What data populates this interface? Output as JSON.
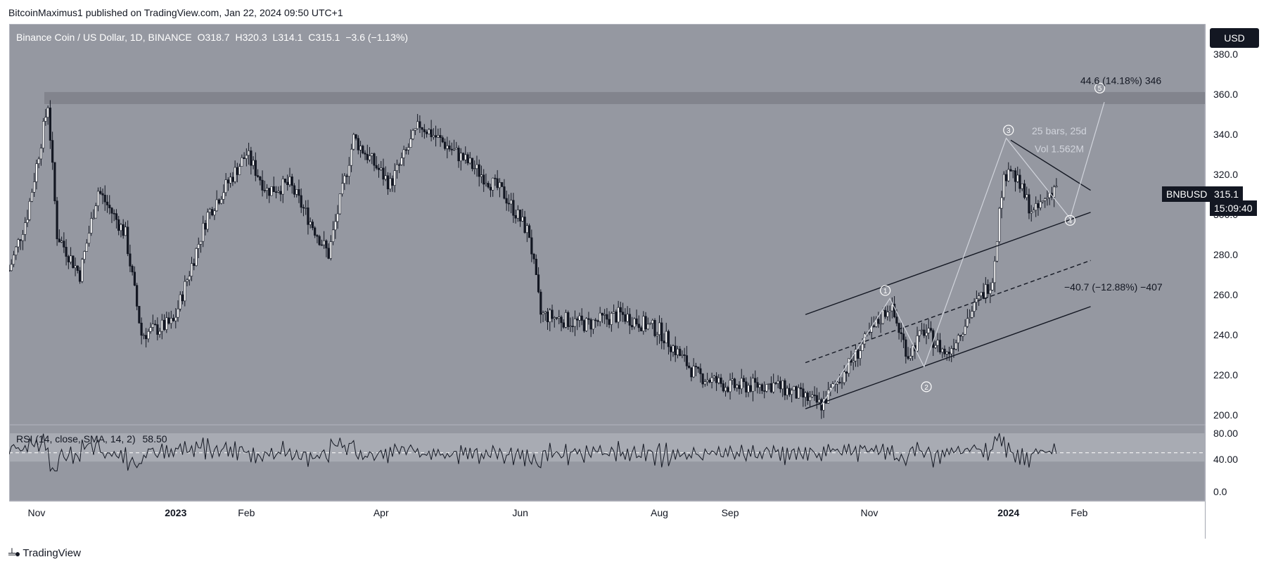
{
  "header": {
    "publisher": "BitcoinMaximus1 published on TradingView.com, Jan 22, 2024 09:50 UTC+1"
  },
  "legend": {
    "symbol": "Binance Coin / US Dollar, 1D, BINANCE",
    "o_label": "O",
    "o": "318.7",
    "h_label": "H",
    "h": "320.3",
    "l_label": "L",
    "l": "314.1",
    "c_label": "C",
    "c": "315.1",
    "change": "−3.6 (−1.13%)"
  },
  "currency_button": "USD",
  "price_tag": {
    "symbol": "BNBUSD",
    "price": "315.1",
    "countdown": "15:09:40"
  },
  "rsi": {
    "label": "RSI (14, close, SMA, 14, 2)",
    "value": "58.50"
  },
  "annotations": {
    "up_target": "44.6 (14.18%) 346",
    "down_target": "−40.7 (−12.88%) −407",
    "bars": "25 bars, 25d",
    "vol": "Vol 1.562M",
    "waves": [
      "1",
      "2",
      "3",
      "4",
      "5"
    ]
  },
  "footer": {
    "brand": "TradingView"
  },
  "colors": {
    "pane_bg": "#9598a1",
    "candle": "#131722",
    "resistance_zone": "#7d8088",
    "rsi_band": "#adb0b8"
  },
  "chart_data": {
    "type": "candlestick",
    "title": "Binance Coin / US Dollar, 1D, BINANCE",
    "x_ticks": [
      "Nov",
      "2023",
      "Feb",
      "Apr",
      "Jun",
      "Aug",
      "Sep",
      "Nov",
      "2024",
      "Feb"
    ],
    "y_ticks": [
      "200.0",
      "220.0",
      "240.0",
      "260.0",
      "280.0",
      "300.0",
      "320.0",
      "340.0",
      "360.0",
      "380.0"
    ],
    "ylim": [
      195,
      395
    ],
    "resistance_zone": [
      355,
      361
    ],
    "close_path": [
      {
        "date": "2022-10-20",
        "close": 272
      },
      {
        "date": "2022-10-28",
        "close": 300
      },
      {
        "date": "2022-11-06",
        "close": 355
      },
      {
        "date": "2022-11-10",
        "close": 290
      },
      {
        "date": "2022-11-20",
        "close": 270
      },
      {
        "date": "2022-11-28",
        "close": 312
      },
      {
        "date": "2022-12-10",
        "close": 290
      },
      {
        "date": "2022-12-17",
        "close": 240
      },
      {
        "date": "2022-12-31",
        "close": 246
      },
      {
        "date": "2023-01-15",
        "close": 300
      },
      {
        "date": "2023-02-01",
        "close": 330
      },
      {
        "date": "2023-02-10",
        "close": 312
      },
      {
        "date": "2023-02-20",
        "close": 315
      },
      {
        "date": "2023-03-09",
        "close": 280
      },
      {
        "date": "2023-03-20",
        "close": 338
      },
      {
        "date": "2023-04-05",
        "close": 315
      },
      {
        "date": "2023-04-18",
        "close": 345
      },
      {
        "date": "2023-05-10",
        "close": 325
      },
      {
        "date": "2023-05-25",
        "close": 310
      },
      {
        "date": "2023-06-05",
        "close": 290
      },
      {
        "date": "2023-06-10",
        "close": 250
      },
      {
        "date": "2023-06-30",
        "close": 245
      },
      {
        "date": "2023-07-15",
        "close": 250
      },
      {
        "date": "2023-08-01",
        "close": 242
      },
      {
        "date": "2023-08-17",
        "close": 220
      },
      {
        "date": "2023-09-01",
        "close": 214
      },
      {
        "date": "2023-09-20",
        "close": 215
      },
      {
        "date": "2023-10-11",
        "close": 205
      },
      {
        "date": "2023-10-25",
        "close": 228
      },
      {
        "date": "2023-11-10",
        "close": 255
      },
      {
        "date": "2023-11-18",
        "close": 230
      },
      {
        "date": "2023-11-25",
        "close": 242
      },
      {
        "date": "2023-12-05",
        "close": 230
      },
      {
        "date": "2023-12-15",
        "close": 250
      },
      {
        "date": "2023-12-25",
        "close": 268
      },
      {
        "date": "2023-12-29",
        "close": 312
      },
      {
        "date": "2024-01-01",
        "close": 325
      },
      {
        "date": "2024-01-12",
        "close": 300
      },
      {
        "date": "2024-01-22",
        "close": 315
      }
    ],
    "rsi": {
      "value": 58.5,
      "ylim": [
        0,
        100
      ],
      "y_ticks": [
        "0.0",
        "40.00",
        "80.00"
      ]
    }
  }
}
